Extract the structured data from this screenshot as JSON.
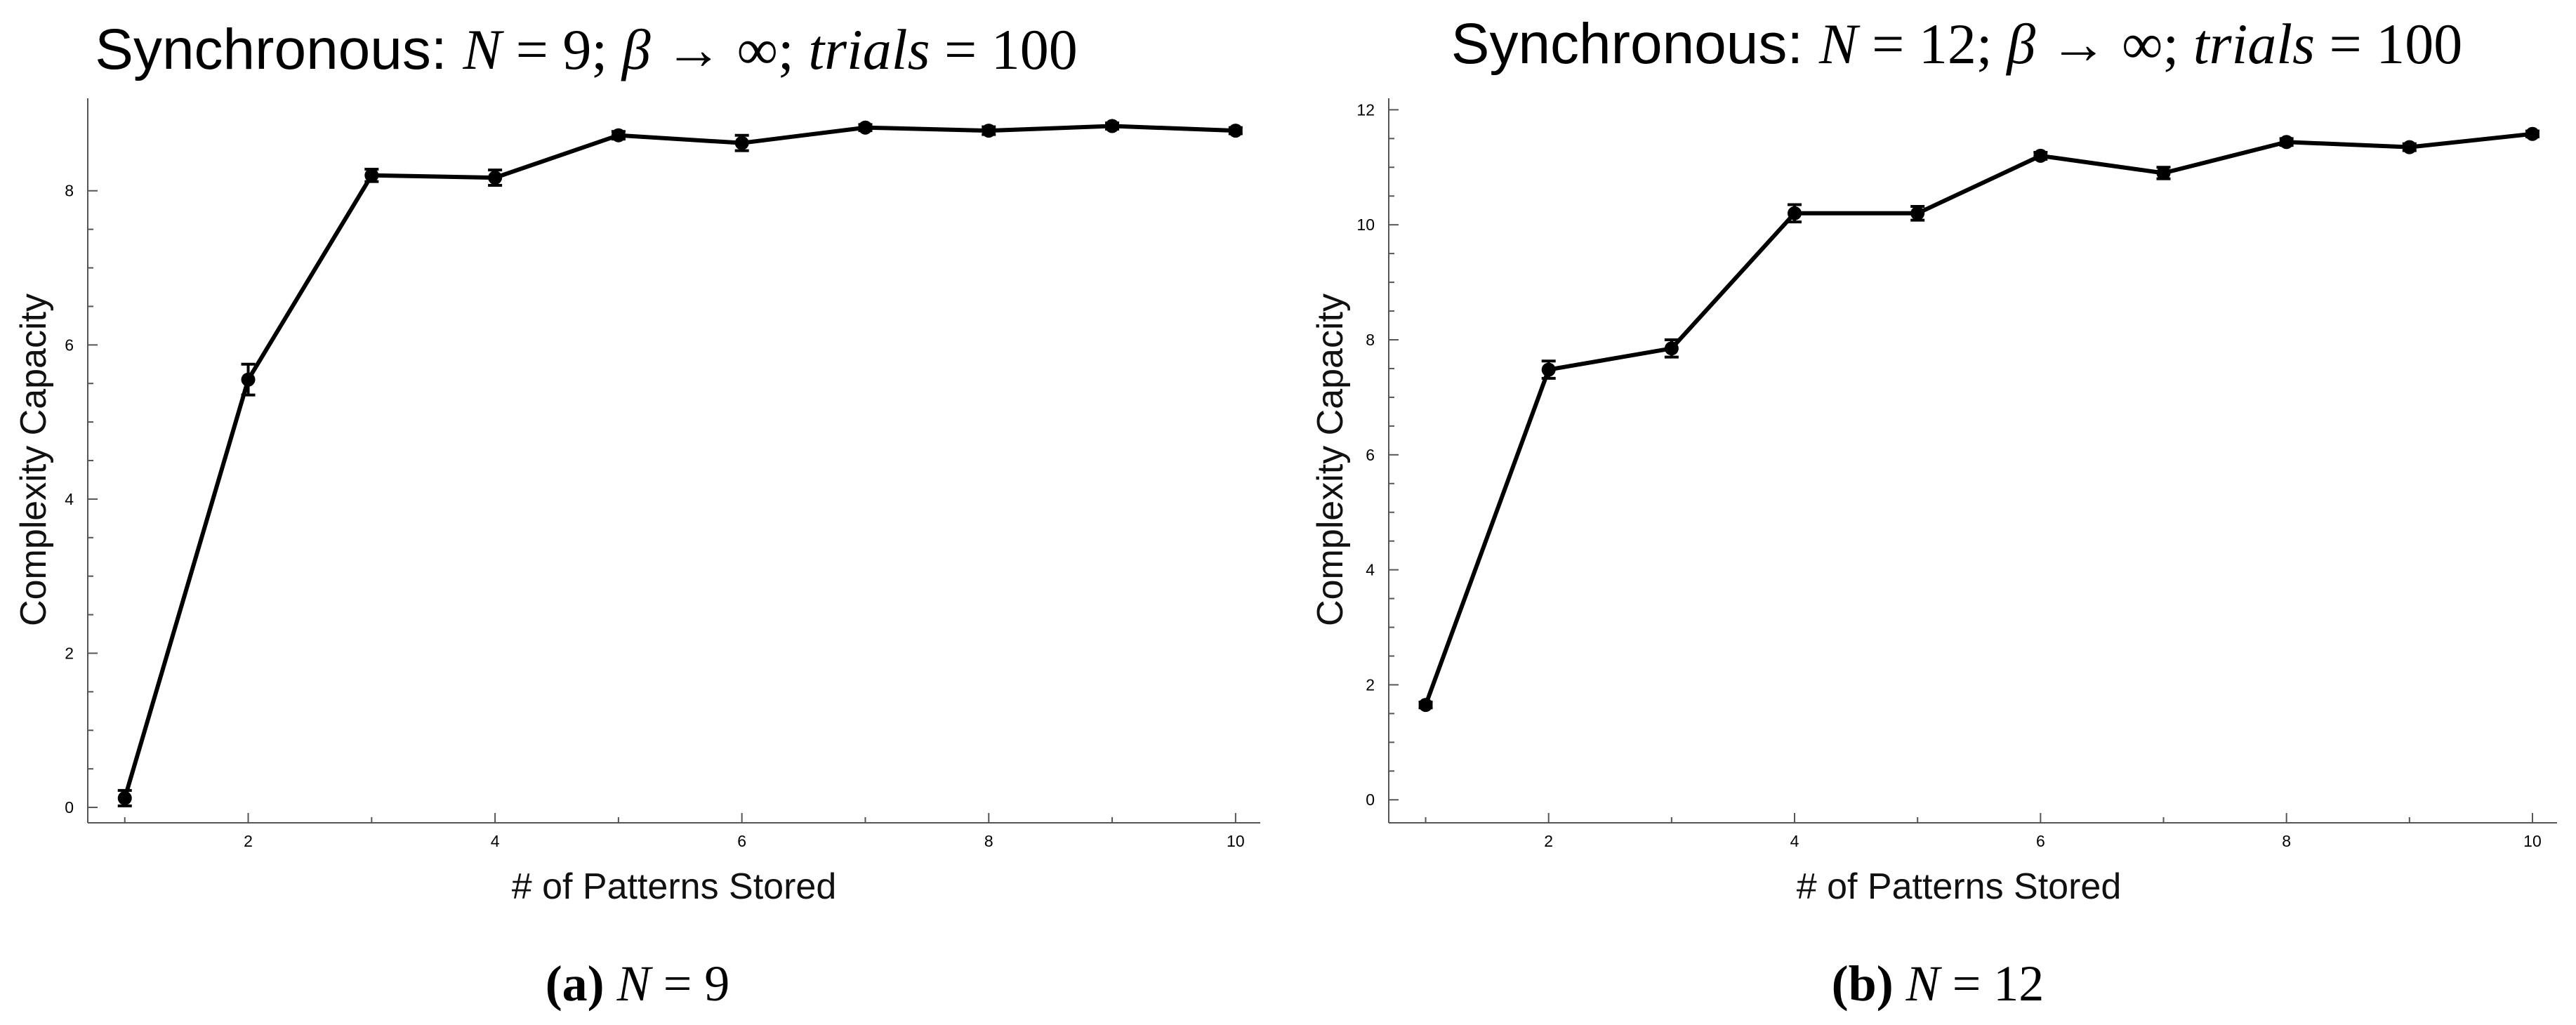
{
  "chart_data": [
    {
      "type": "line",
      "title_prefix": "Synchronous: ",
      "title_math": "N = 9; β → ∞; trials = 100",
      "title_parts": {
        "N": "N",
        "n_value": "9",
        "beta": "β",
        "arrow": "→",
        "infinity": "∞",
        "trials": "trials",
        "trials_value": "100"
      },
      "xlabel": "# of Patterns Stored",
      "ylabel": "Complexity Capacity",
      "xlim": [
        0.7,
        10.2
      ],
      "ylim": [
        -0.2,
        9.2
      ],
      "xticks": [
        2,
        4,
        6,
        8,
        10
      ],
      "yticks": [
        0,
        2,
        4,
        6,
        8
      ],
      "x": [
        1,
        2,
        3,
        4,
        5,
        6,
        7,
        8,
        9,
        10
      ],
      "values": [
        0.12,
        5.55,
        8.2,
        8.17,
        8.72,
        8.62,
        8.82,
        8.78,
        8.84,
        8.78
      ],
      "errors": [
        0.1,
        0.2,
        0.08,
        0.1,
        0.05,
        0.1,
        0.04,
        0.05,
        0.04,
        0.04
      ],
      "caption_label": "(a)",
      "caption_var": "N",
      "caption_eq": " = 9"
    },
    {
      "type": "line",
      "title_prefix": "Synchronous: ",
      "title_math": "N = 12; β → ∞; trials = 100",
      "title_parts": {
        "N": "N",
        "n_value": "12",
        "beta": "β",
        "arrow": "→",
        "infinity": "∞",
        "trials": "trials",
        "trials_value": "100"
      },
      "xlabel": "# of Patterns Stored",
      "ylabel": "Complexity Capacity",
      "xlim": [
        0.7,
        10.2
      ],
      "ylim": [
        -0.4,
        12.2
      ],
      "xticks": [
        2,
        4,
        6,
        8,
        10
      ],
      "yticks": [
        0,
        2,
        4,
        6,
        8,
        10,
        12
      ],
      "x": [
        1,
        2,
        3,
        4,
        5,
        6,
        7,
        8,
        9,
        10
      ],
      "values": [
        1.65,
        7.48,
        7.85,
        10.2,
        10.2,
        11.2,
        10.9,
        11.44,
        11.35,
        11.58
      ],
      "errors": [
        0.05,
        0.15,
        0.15,
        0.15,
        0.12,
        0.06,
        0.1,
        0.06,
        0.06,
        0.05
      ],
      "caption_label": "(b)",
      "caption_var": "N",
      "caption_eq": " = 12"
    }
  ]
}
